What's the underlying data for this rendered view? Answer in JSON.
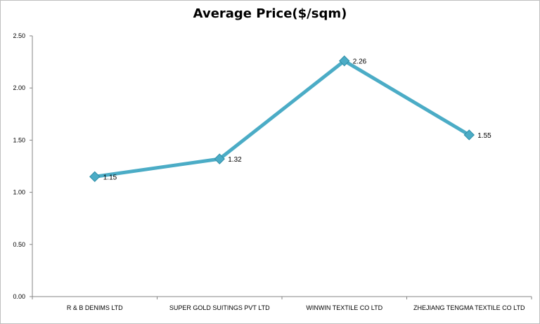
{
  "chart_data": {
    "type": "line",
    "title": "Average Price($/sqm)",
    "categories": [
      "R & B DENIMS  LTD",
      "SUPER GOLD SUITINGS  PVT LTD",
      "WINWIN TEXTILE  CO LTD",
      "ZHEJIANG TENGMA  TEXTILE  CO LTD"
    ],
    "series": [
      {
        "values": [
          1.15,
          1.32,
          2.26,
          1.55
        ]
      }
    ],
    "data_labels": [
      "1.15",
      "1.32",
      "2.26",
      "1.55"
    ],
    "y_ticks": [
      "0.00",
      "0.50",
      "1.00",
      "1.50",
      "2.00",
      "2.50"
    ],
    "ylim": [
      0,
      2.5
    ],
    "grid": false,
    "colors": {
      "line": "#4bacc6",
      "marker": "#4bacc6",
      "marker_edge": "#2f8fa8"
    }
  }
}
